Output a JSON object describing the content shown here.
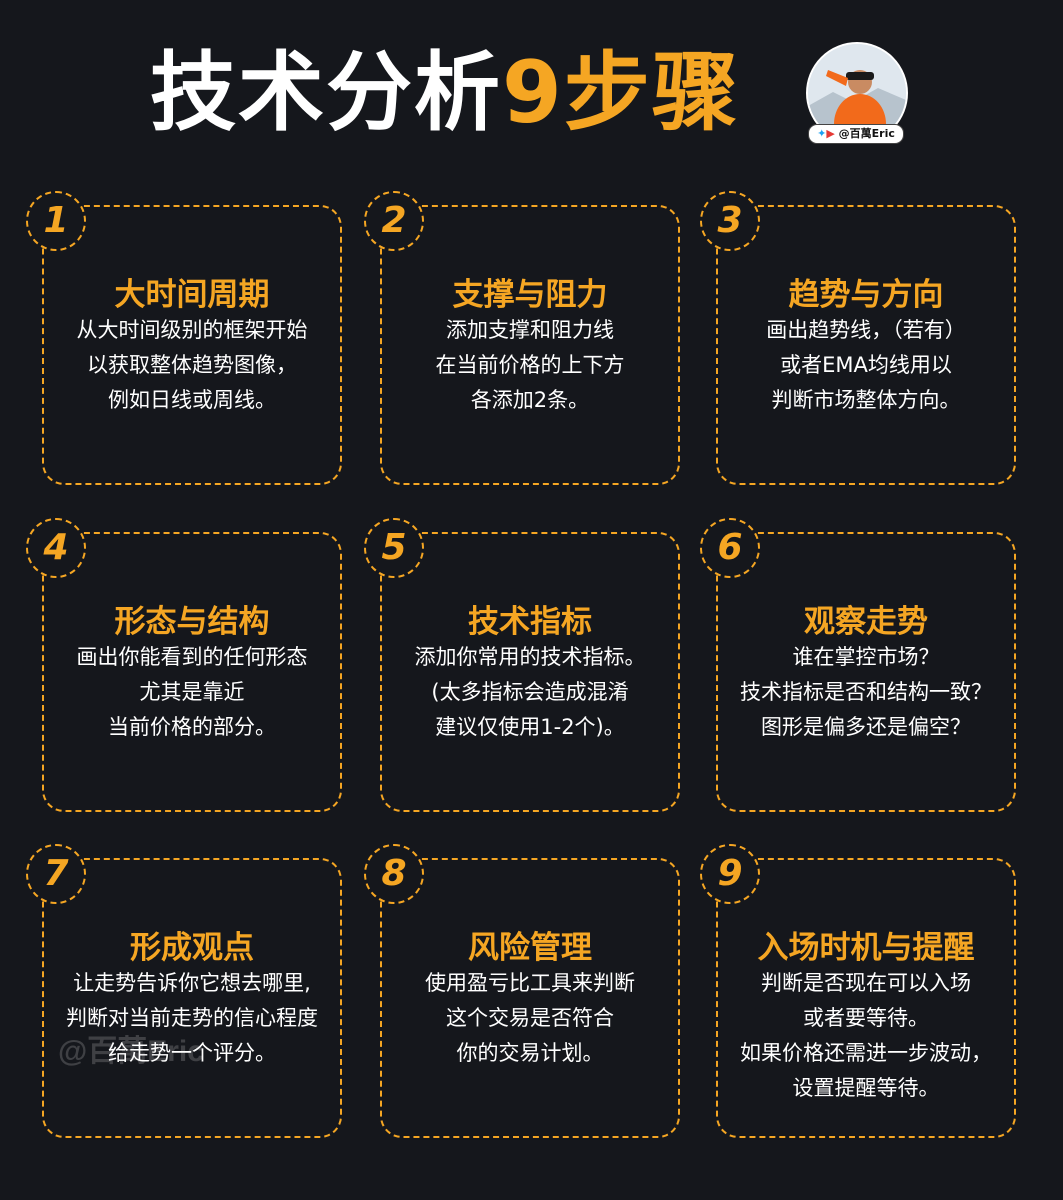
{
  "header": {
    "title_white": "技术分析",
    "title_orange": "9步骤",
    "badge": "@百萬Eric"
  },
  "watermark": "@百萬Eric",
  "colors": {
    "accent": "#f5a623",
    "background": "#15171c",
    "text": "#ffffff"
  },
  "steps": [
    {
      "num": "1",
      "title": "大时间周期",
      "lines": [
        "从大时间级别的框架开始",
        "以获取整体趋势图像，",
        "例如日线或周线。"
      ]
    },
    {
      "num": "2",
      "title": "支撑与阻力",
      "lines": [
        "添加支撑和阻力线",
        "在当前价格的上下方",
        "各添加2条。"
      ]
    },
    {
      "num": "3",
      "title": "趋势与方向",
      "lines": [
        "画出趋势线，（若有）",
        "或者EMA均线用以",
        "判断市场整体方向。"
      ]
    },
    {
      "num": "4",
      "title": "形态与结构",
      "lines": [
        "画出你能看到的任何形态",
        "尤其是靠近",
        "当前价格的部分。"
      ]
    },
    {
      "num": "5",
      "title": "技术指标",
      "lines": [
        "添加你常用的技术指标。",
        "(太多指标会造成混淆",
        "建议仅使用1-2个)。"
      ]
    },
    {
      "num": "6",
      "title": "观察走势",
      "lines": [
        "谁在掌控市场？",
        "技术指标是否和结构一致？",
        "图形是偏多还是偏空？"
      ]
    },
    {
      "num": "7",
      "title": "形成观点",
      "lines": [
        "让走势告诉你它想去哪里,",
        "判断对当前走势的信心程度",
        "给走势一个评分。"
      ]
    },
    {
      "num": "8",
      "title": "风险管理",
      "lines": [
        "使用盈亏比工具来判断",
        "这个交易是否符合",
        "你的交易计划。"
      ]
    },
    {
      "num": "9",
      "title": "入场时机与提醒",
      "lines": [
        "判断是否现在可以入场",
        "或者要等待。",
        "如果价格还需进一步波动，",
        "设置提醒等待。"
      ]
    }
  ]
}
